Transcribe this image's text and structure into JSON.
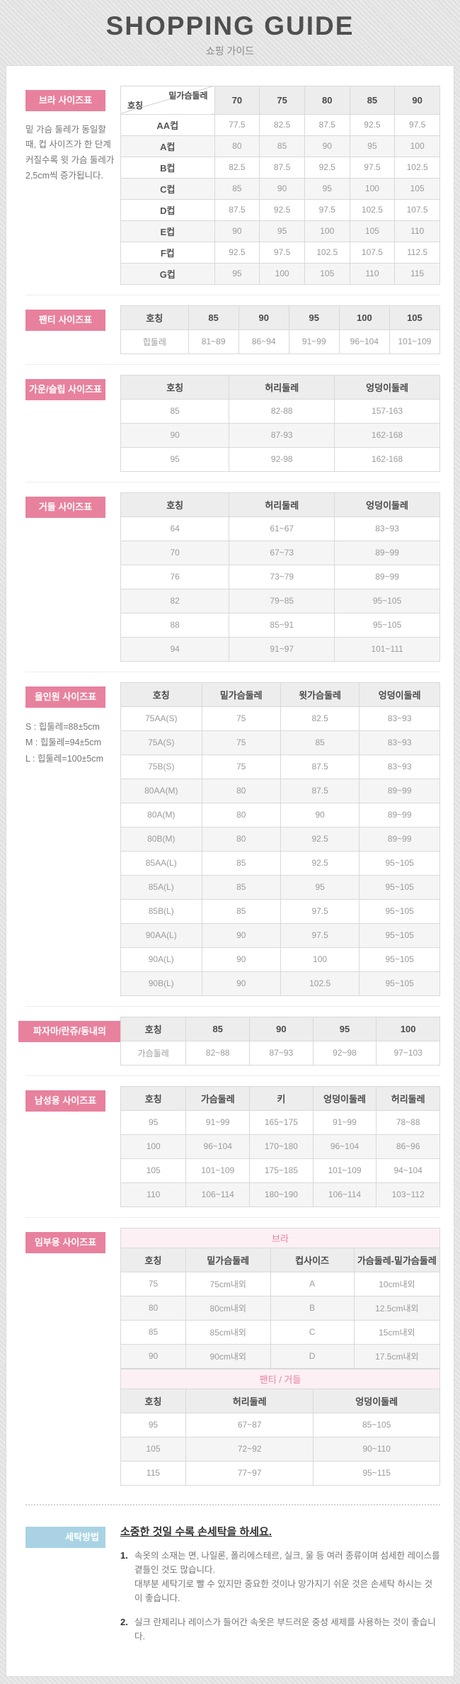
{
  "header": {
    "title": "SHOPPING GUIDE",
    "subtitle": "쇼핑 가이드"
  },
  "colors": {
    "accent_pink": "#e8819e",
    "accent_blue": "#a9d3e4",
    "header_cell_bg": "#ededed",
    "zebra_row_bg": "#f5f5f5",
    "group_row_bg": "#fcf0f4"
  },
  "sections": {
    "bra": {
      "label": "브라 사이즈표",
      "note": "밑 가슴 둘레가 동일할 때, 컵 사이즈가 한 단계 커질수록 윗 가슴 둘레가 2,5cm씩 증가됩니다.",
      "table": {
        "corner": {
          "top": "밑가슴둘레",
          "bottom": "호칭"
        },
        "head": [
          "70",
          "75",
          "80",
          "85",
          "90"
        ],
        "rows": [
          [
            "AA컵",
            "77.5",
            "82.5",
            "87.5",
            "92.5",
            "97.5"
          ],
          [
            "A컵",
            "80",
            "85",
            "90",
            "95",
            "100"
          ],
          [
            "B컵",
            "82.5",
            "87.5",
            "92.5",
            "97.5",
            "102.5"
          ],
          [
            "C컵",
            "85",
            "90",
            "95",
            "100",
            "105"
          ],
          [
            "D컵",
            "87.5",
            "92.5",
            "97.5",
            "102.5",
            "107.5"
          ],
          [
            "E컵",
            "90",
            "95",
            "100",
            "105",
            "110"
          ],
          [
            "F컵",
            "92.5",
            "97.5",
            "102.5",
            "107.5",
            "112.5"
          ],
          [
            "G컵",
            "95",
            "100",
            "105",
            "110",
            "115"
          ]
        ]
      }
    },
    "panty": {
      "label": "팬티 사이즈표",
      "table": {
        "head": [
          "호칭",
          "85",
          "90",
          "95",
          "100",
          "105"
        ],
        "rows": [
          [
            "힙둘레",
            "81~89",
            "86~94",
            "91~99",
            "96~104",
            "101~109"
          ]
        ]
      }
    },
    "gown": {
      "label": "가운/슬립 사이즈표",
      "table": {
        "head": [
          "호칭",
          "허리둘레",
          "엉덩이둘레"
        ],
        "rows": [
          [
            "85",
            "82-88",
            "157-163"
          ],
          [
            "90",
            "87-93",
            "162-168"
          ],
          [
            "95",
            "92-98",
            "162-168"
          ]
        ]
      }
    },
    "girdle": {
      "label": "거들 사이즈표",
      "table": {
        "head": [
          "호칭",
          "허리둘레",
          "엉덩이둘레"
        ],
        "rows": [
          [
            "64",
            "61~67",
            "83~93"
          ],
          [
            "70",
            "67~73",
            "89~99"
          ],
          [
            "76",
            "73~79",
            "89~99"
          ],
          [
            "82",
            "79~85",
            "95~105"
          ],
          [
            "88",
            "85~91",
            "95~105"
          ],
          [
            "94",
            "91~97",
            "101~111"
          ]
        ]
      }
    },
    "allinone": {
      "label": "올인원 사이즈표",
      "notes": [
        "S : 힙둘레=88±5cm",
        "M : 힙둘레=94±5cm",
        "L : 힙둘레=100±5cm"
      ],
      "table": {
        "head": [
          "호칭",
          "밑가슴둘레",
          "윗가슴둘레",
          "엉덩이둘레"
        ],
        "rows": [
          [
            "75AA(S)",
            "75",
            "82.5",
            "83~93"
          ],
          [
            "75A(S)",
            "75",
            "85",
            "83~93"
          ],
          [
            "75B(S)",
            "75",
            "87.5",
            "83~93"
          ],
          [
            "80AA(M)",
            "80",
            "87.5",
            "89~99"
          ],
          [
            "80A(M)",
            "80",
            "90",
            "89~99"
          ],
          [
            "80B(M)",
            "80",
            "92.5",
            "89~99"
          ],
          [
            "85AA(L)",
            "85",
            "92.5",
            "95~105"
          ],
          [
            "85A(L)",
            "85",
            "95",
            "95~105"
          ],
          [
            "85B(L)",
            "85",
            "97.5",
            "95~105"
          ],
          [
            "90AA(L)",
            "90",
            "97.5",
            "95~105"
          ],
          [
            "90A(L)",
            "90",
            "100",
            "95~105"
          ],
          [
            "90B(L)",
            "90",
            "102.5",
            "95~105"
          ]
        ]
      }
    },
    "pajama": {
      "label": "파자마/란쥬/동내의",
      "table": {
        "head": [
          "호칭",
          "85",
          "90",
          "95",
          "100"
        ],
        "rows": [
          [
            "가슴둘레",
            "82~88",
            "87~93",
            "92~98",
            "97~103"
          ]
        ]
      }
    },
    "mens": {
      "label": "남성용 사이즈표",
      "table": {
        "head": [
          "호칭",
          "가슴둘레",
          "키",
          "엉덩이둘레",
          "허리둘레"
        ],
        "rows": [
          [
            "95",
            "91~99",
            "165~175",
            "91~99",
            "78~88"
          ],
          [
            "100",
            "96~104",
            "170~180",
            "96~104",
            "86~96"
          ],
          [
            "105",
            "101~109",
            "175~185",
            "101~109",
            "94~104"
          ],
          [
            "110",
            "106~114",
            "180~190",
            "106~114",
            "103~112"
          ]
        ]
      }
    },
    "maternity": {
      "label": "임부용 사이즈표",
      "bra_table": {
        "group": "브라",
        "head": [
          "호칭",
          "밑가슴둘레",
          "컵사이즈",
          "가슴둘레-밑가슴둘레"
        ],
        "rows": [
          [
            "75",
            "75cm내외",
            "A",
            "10cm내외"
          ],
          [
            "80",
            "80cm내외",
            "B",
            "12.5cm내외"
          ],
          [
            "85",
            "85cm내외",
            "C",
            "15cm내외"
          ],
          [
            "90",
            "90cm내외",
            "D",
            "17.5cm내외"
          ]
        ]
      },
      "panty_table": {
        "group": "팬티 / 거들",
        "head": [
          "호칭",
          "허리둘레",
          "엉덩이둘레"
        ],
        "rows": [
          [
            "95",
            "67~87",
            "85~105"
          ],
          [
            "105",
            "72~92",
            "90~110"
          ],
          [
            "115",
            "77~97",
            "95~115"
          ]
        ]
      }
    },
    "wash": {
      "label": "세탁방법",
      "title": "소중한 것일 수록 손세탁을 하세요.",
      "items": [
        {
          "num": "1.",
          "lines": [
            "속옷의 소재는 면, 나일론, 폴리에스테르, 실크, 울 등 여러 종류이며 섬세한 레이스를 곁들인 것도 많습니다.",
            "대부분 세탁기로 빨 수 있지만 중요한 것이나 망가지기 쉬운 것은 손세탁 하시는 것이 좋습니다."
          ]
        },
        {
          "num": "2.",
          "lines": [
            "실크 란제리나 레이스가 들어간 속옷은 부드러운 중성 세제를 사용하는 것이 좋습니다."
          ]
        }
      ]
    }
  }
}
